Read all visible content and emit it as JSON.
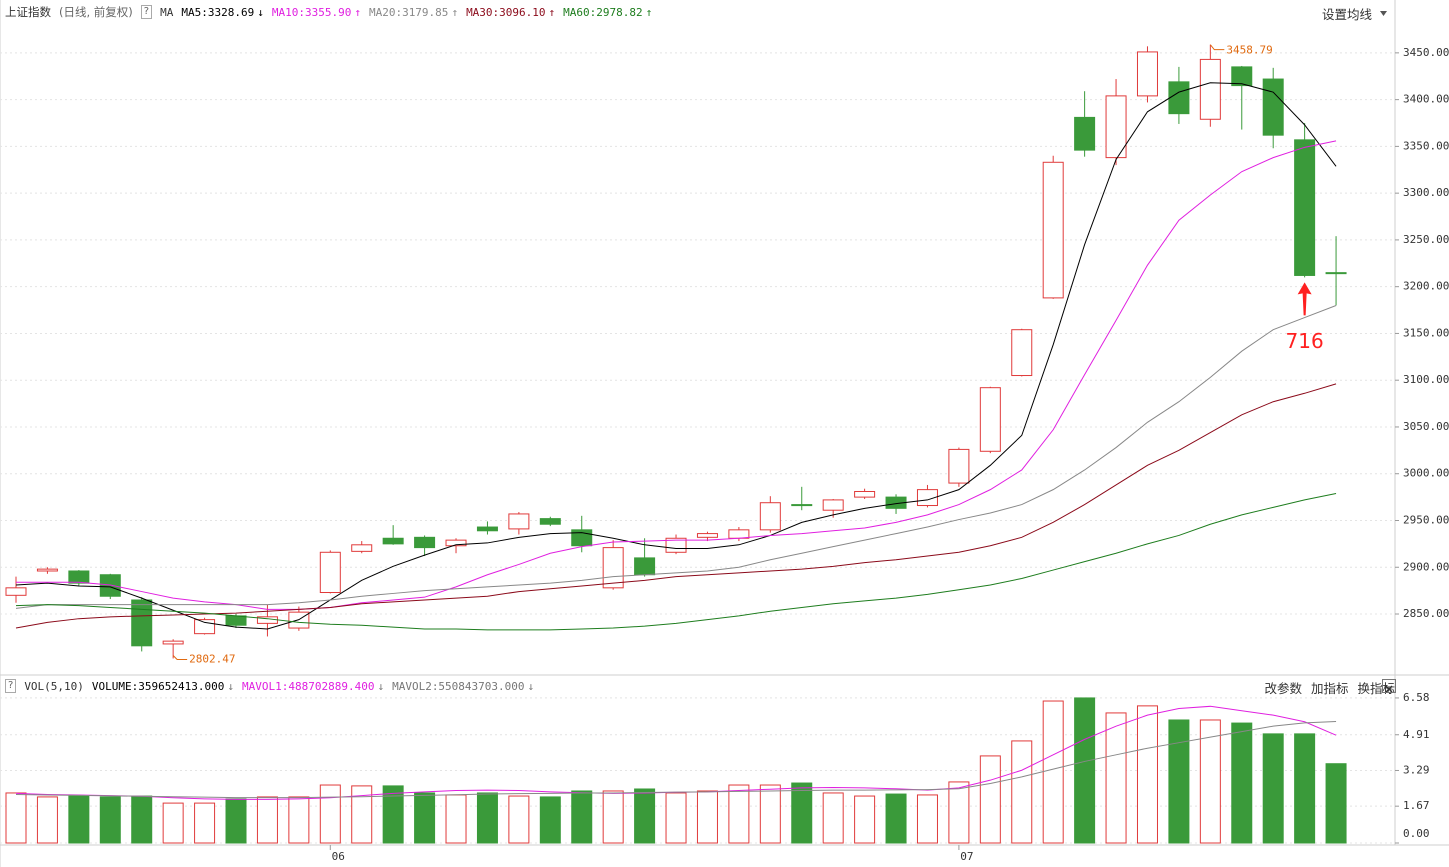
{
  "chart_data": [
    {
      "type": "candlestick",
      "title": "上证指数",
      "subtitle": "(日线, 前复权)",
      "help": "?",
      "indicator": "MA",
      "settings": "设置均线",
      "categories": [
        null,
        null,
        null,
        null,
        null,
        null,
        null,
        null,
        null,
        null,
        "06",
        null,
        null,
        null,
        null,
        null,
        null,
        null,
        null,
        null,
        null,
        null,
        null,
        null,
        null,
        null,
        null,
        null,
        null,
        null,
        "07",
        null,
        null,
        null,
        null,
        null,
        null,
        null,
        null,
        null,
        null,
        null,
        null
      ],
      "open": [
        2870,
        2896,
        2896,
        2892,
        2865,
        2818,
        2829,
        2848,
        2840,
        2835,
        2873,
        2917,
        2931,
        2932,
        2923,
        2943,
        2941,
        2952,
        2940,
        2878,
        2910,
        2916,
        2932,
        2931,
        2940,
        2967,
        2961,
        2975,
        2975,
        2966,
        2990,
        3024,
        3105,
        3188,
        3381,
        3338,
        3404,
        3419,
        3379,
        3435,
        3422,
        3357,
        3215
      ],
      "high": [
        2890,
        2900,
        2897,
        2893,
        2868,
        2823,
        2846,
        2850,
        2860,
        2858,
        2918,
        2928,
        2945,
        2934,
        2931,
        2949,
        2959,
        2954,
        2955,
        2929,
        2931,
        2935,
        2938,
        2943,
        2976,
        2986,
        2973,
        2984,
        2978,
        2988,
        3028,
        3093,
        3155,
        3340,
        3409,
        3422,
        3457,
        3435,
        3458.79,
        3436,
        3434,
        3375,
        3254
      ],
      "low": [
        2862,
        2893,
        2880,
        2866,
        2810,
        2802.47,
        2828,
        2835,
        2826,
        2832,
        2872,
        2915,
        2924,
        2912,
        2915,
        2935,
        2935,
        2944,
        2916,
        2876,
        2890,
        2914,
        2928,
        2928,
        2937,
        2961,
        2953,
        2973,
        2957,
        2964,
        2986,
        3022,
        3104,
        3187,
        3339,
        3330,
        3397,
        3374,
        3371,
        3368,
        3348,
        3210,
        3180
      ],
      "close": [
        2878,
        2898,
        2883,
        2869,
        2816,
        2821,
        2844,
        2838,
        2847,
        2852,
        2916,
        2924,
        2925,
        2921,
        2929,
        2939,
        2957,
        2946,
        2923,
        2921,
        2892,
        2931,
        2936,
        2940,
        2969,
        2966,
        2972,
        2981,
        2963,
        2983,
        3026,
        3092,
        3154,
        3333,
        3346,
        3404,
        3451,
        3385,
        3443,
        3415,
        3362,
        3212,
        3214
      ],
      "up_color": "#e03a3a",
      "down_color": "#3a9a3a",
      "extreme_color": "#e06a10",
      "annotation": "716",
      "annotation_color": "#ff2020",
      "ylim": [
        2788,
        3483
      ],
      "yticks": [
        {
          "value": 2850,
          "label": "2850.00"
        },
        {
          "value": 2900,
          "label": "2900.00"
        },
        {
          "value": 2950,
          "label": "2950.00"
        },
        {
          "value": 3000,
          "label": "3000.00"
        },
        {
          "value": 3050,
          "label": "3050.00"
        },
        {
          "value": 3100,
          "label": "3100.00"
        },
        {
          "value": 3150,
          "label": "3150.00"
        },
        {
          "value": 3200,
          "label": "3200.00"
        },
        {
          "value": 3250,
          "label": "3250.00"
        },
        {
          "value": 3300,
          "label": "3300.00"
        },
        {
          "value": 3350,
          "label": "3350.00"
        },
        {
          "value": 3400,
          "label": "3400.00"
        },
        {
          "value": 3450,
          "label": "3450.00"
        }
      ],
      "grid": true,
      "series": [
        {
          "name": "MA5:3328.69",
          "trend": "↓",
          "color": "#000000",
          "values": [
            2881,
            2883,
            2880,
            2879,
            2867,
            2854,
            2841,
            2836,
            2834,
            2844,
            2865,
            2886,
            2901,
            2913,
            2924,
            2926,
            2932,
            2936,
            2937,
            2931,
            2924,
            2920,
            2920,
            2924,
            2934,
            2948,
            2956,
            2963,
            2968,
            2972,
            2983,
            3009,
            3041,
            3138,
            3245,
            3336,
            3387,
            3408,
            3418,
            3417,
            3408,
            3373,
            3328.69
          ]
        },
        {
          "name": "MA10:3355.90",
          "trend": "↑",
          "color": "#e020e0",
          "values": [
            2884,
            2884,
            2884,
            2881,
            2874,
            2867,
            2863,
            2860,
            2855,
            2855,
            2857,
            2862,
            2865,
            2868,
            2879,
            2892,
            2903,
            2915,
            2922,
            2927,
            2928,
            2929,
            2929,
            2931,
            2934,
            2936,
            2939,
            2942,
            2948,
            2956,
            2967,
            2983,
            3004,
            3047,
            3106,
            3164,
            3223,
            3271,
            3298,
            3323,
            3338,
            3349,
            3355.9
          ]
        },
        {
          "name": "MA20:3179.85",
          "trend": "↑",
          "color": "#888888",
          "values": [
            2856,
            2860,
            2860,
            2860,
            2860,
            2860,
            2860,
            2860,
            2860,
            2862,
            2865,
            2869,
            2872,
            2875,
            2877,
            2879,
            2881,
            2883,
            2886,
            2890,
            2892,
            2894,
            2896,
            2900,
            2908,
            2915,
            2922,
            2929,
            2936,
            2943,
            2951,
            2958,
            2967,
            2983,
            3004,
            3028,
            3055,
            3077,
            3103,
            3131,
            3154,
            3167,
            3179.85
          ]
        },
        {
          "name": "MA30:3096.10",
          "trend": "↑",
          "color": "#8b0a1a",
          "values": [
            2835,
            2841,
            2845,
            2847,
            2848,
            2849,
            2850,
            2851,
            2853,
            2855,
            2857,
            2861,
            2863,
            2865,
            2867,
            2869,
            2874,
            2877,
            2880,
            2883,
            2886,
            2890,
            2892,
            2894,
            2896,
            2898,
            2901,
            2905,
            2908,
            2912,
            2916,
            2923,
            2932,
            2948,
            2967,
            2988,
            3009,
            3025,
            3044,
            3063,
            3077,
            3086,
            3096.1
          ]
        },
        {
          "name": "MA60:2978.82",
          "trend": "↑",
          "color": "#1e7d1e",
          "values": [
            2859,
            2860,
            2859,
            2857,
            2855,
            2853,
            2851,
            2848,
            2845,
            2841,
            2839,
            2838,
            2836,
            2834,
            2834,
            2833,
            2833,
            2833,
            2834,
            2835,
            2837,
            2840,
            2844,
            2848,
            2853,
            2857,
            2861,
            2864,
            2867,
            2871,
            2876,
            2881,
            2888,
            2897,
            2906,
            2915,
            2925,
            2934,
            2946,
            2956,
            2964,
            2972,
            2978.82
          ]
        }
      ]
    },
    {
      "type": "bar",
      "title": "VOL(5,10)",
      "help": "?",
      "buttons": [
        "改参数",
        "加指标",
        "换指标"
      ],
      "volume": {
        "name": "VOLUME:359652413.000",
        "trend": "↓",
        "values": [
          2.27,
          2.09,
          2.13,
          2.09,
          2.13,
          1.81,
          1.81,
          2.0,
          2.09,
          2.09,
          2.63,
          2.59,
          2.59,
          2.27,
          2.18,
          2.27,
          2.13,
          2.09,
          2.36,
          2.36,
          2.45,
          2.27,
          2.36,
          2.63,
          2.63,
          2.72,
          2.27,
          2.13,
          2.22,
          2.18,
          2.77,
          3.95,
          4.63,
          6.44,
          6.58,
          5.9,
          6.22,
          5.58,
          5.58,
          5.44,
          4.95,
          4.95,
          3.59652413
        ]
      },
      "series": [
        {
          "name": "MAVOL1:488702889.400",
          "trend": "↓",
          "color": "#e020e0",
          "values": [
            2.25,
            2.2,
            2.18,
            2.15,
            2.12,
            2.05,
            2.0,
            1.98,
            1.98,
            2.0,
            2.05,
            2.15,
            2.25,
            2.32,
            2.38,
            2.4,
            2.38,
            2.32,
            2.28,
            2.25,
            2.27,
            2.3,
            2.32,
            2.38,
            2.44,
            2.5,
            2.52,
            2.5,
            2.46,
            2.4,
            2.5,
            2.85,
            3.3,
            4.0,
            4.7,
            5.3,
            5.8,
            6.1,
            6.2,
            6.0,
            5.8,
            5.5,
            4.89
          ]
        },
        {
          "name": "MAVOL2:550843703.000",
          "trend": "↓",
          "color": "#888888",
          "values": [
            2.2,
            2.18,
            2.16,
            2.14,
            2.12,
            2.1,
            2.08,
            2.06,
            2.06,
            2.06,
            2.08,
            2.1,
            2.13,
            2.16,
            2.19,
            2.22,
            2.24,
            2.25,
            2.27,
            2.27,
            2.29,
            2.31,
            2.32,
            2.34,
            2.36,
            2.38,
            2.4,
            2.4,
            2.41,
            2.42,
            2.46,
            2.7,
            3.0,
            3.35,
            3.7,
            4.0,
            4.3,
            4.55,
            4.8,
            5.05,
            5.3,
            5.45,
            5.51
          ]
        }
      ],
      "ylim": [
        0,
        6.94
      ],
      "yticks": [
        {
          "value": 0,
          "label": "0.00"
        },
        1.67,
        3.29,
        4.91,
        6.58
      ],
      "grid": true
    }
  ]
}
